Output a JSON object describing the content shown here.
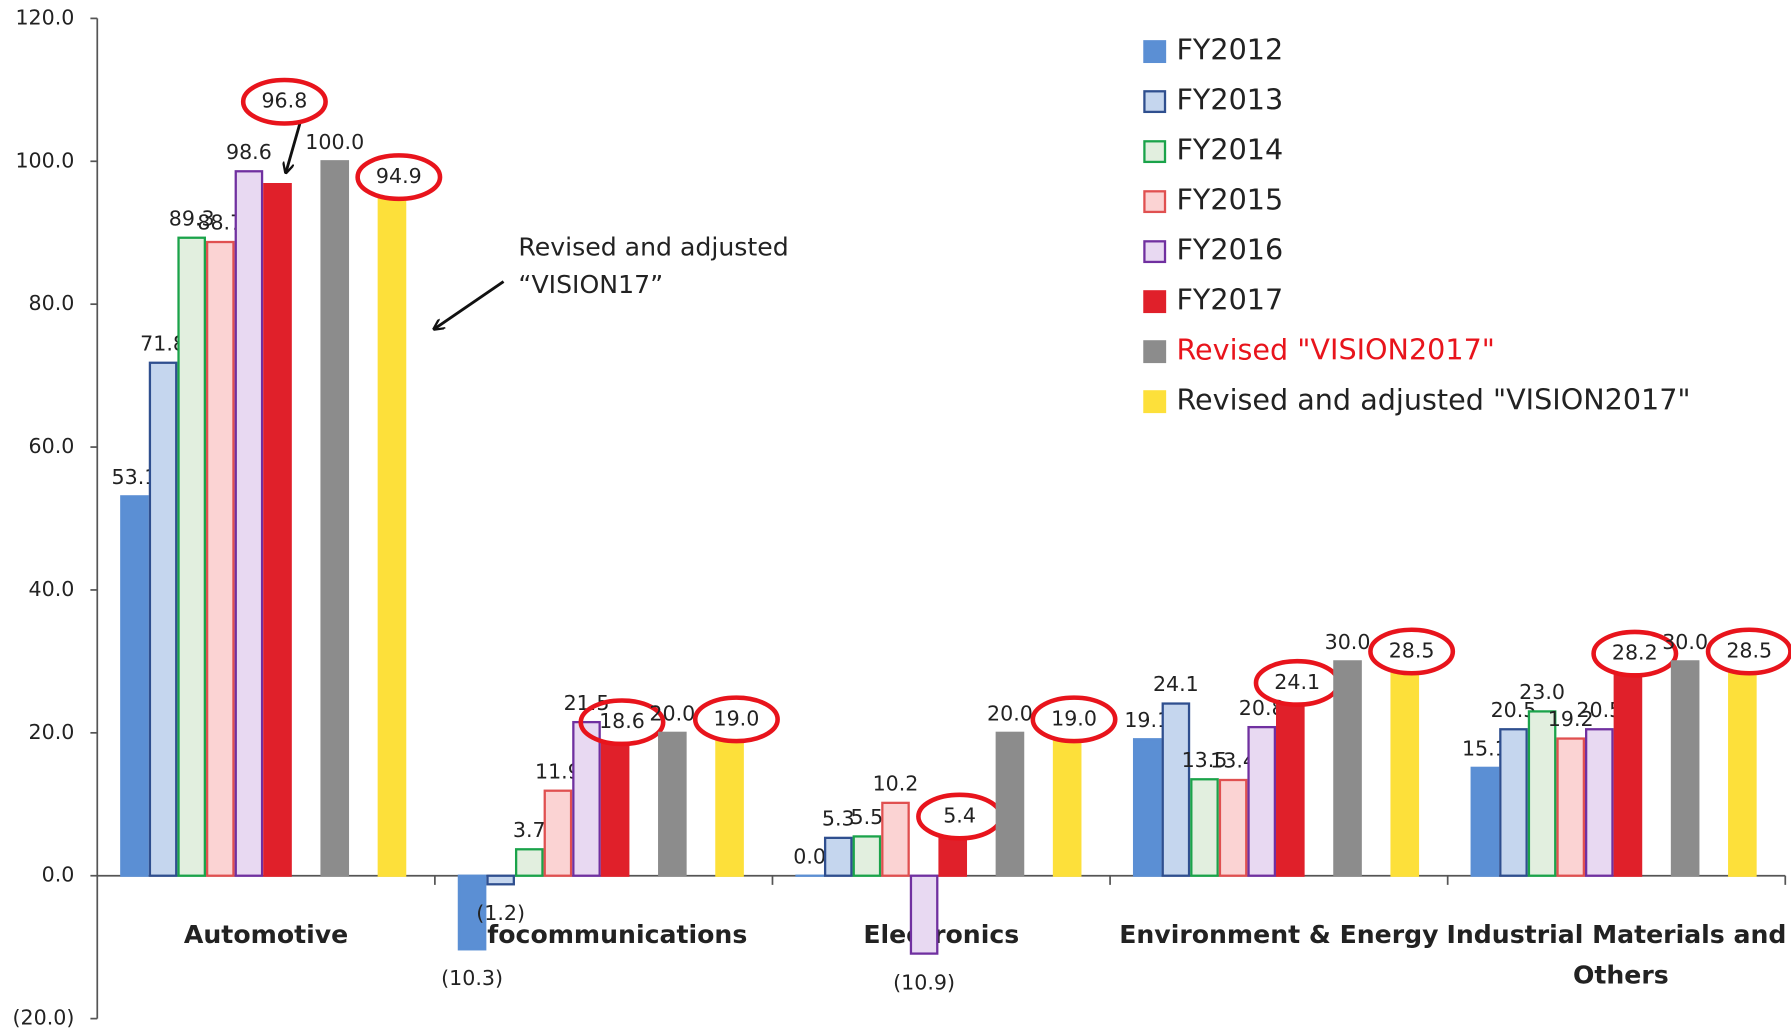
{
  "chart_data": {
    "type": "bar",
    "categories": [
      "Automotive",
      "Infocommunications",
      "Electronics",
      "Environment & Energy",
      "Industrial Materials and Others"
    ],
    "series": [
      {
        "name": "FY2012",
        "color": "#5b8fd4",
        "edge": "#5b8fd4",
        "values": [
          53.1,
          -10.3,
          0,
          19.1,
          15.1
        ],
        "value_labels": [
          "53.1",
          "(10.3)",
          "0.0",
          "19.1",
          "15.1"
        ]
      },
      {
        "name": "FY2013",
        "color": "#c5d6ee",
        "edge": "#2f4f8f",
        "values": [
          71.8,
          -1.2,
          5.3,
          24.1,
          20.5
        ],
        "value_labels": [
          "71.8",
          "(1.2)",
          "5.3",
          "24.1",
          "20.5"
        ]
      },
      {
        "name": "FY2014",
        "color": "#e2efdf",
        "edge": "#1aa34a",
        "values": [
          89.3,
          3.7,
          5.5,
          13.5,
          23.0
        ],
        "value_labels": [
          "89.3",
          "3.7",
          "5.5",
          "13.5",
          "23.0"
        ]
      },
      {
        "name": "FY2015",
        "color": "#fbd3d3",
        "edge": "#e05050",
        "values": [
          88.7,
          11.9,
          10.2,
          13.4,
          19.2
        ],
        "value_labels": [
          "88.7",
          "11.9",
          "10.2",
          "13.4",
          "19.2"
        ]
      },
      {
        "name": "FY2016",
        "color": "#e8d9f2",
        "edge": "#7030a0",
        "values": [
          98.6,
          21.5,
          -10.9,
          20.8,
          20.5
        ],
        "value_labels": [
          "98.6",
          "21.5",
          "(10.9)",
          "20.8",
          "20.5"
        ]
      },
      {
        "name": "FY2017",
        "color": "#e0202a",
        "edge": "#e0202a",
        "highlighted": true,
        "values": [
          96.8,
          18.6,
          5.4,
          24.1,
          28.2
        ],
        "value_labels": [
          "96.8",
          "18.6",
          "5.4",
          "24.1",
          "28.2"
        ]
      },
      {
        "name": "Revised \"VISION2017\"",
        "color": "#8c8c8c",
        "edge": "#8c8c8c",
        "legend_text_color": "#e8141c",
        "values": [
          100,
          20,
          20,
          30,
          30
        ],
        "value_labels": [
          "100.0",
          "20.0",
          "20.0",
          "30.0",
          "30.0"
        ]
      },
      {
        "name": "Revised and adjusted \"VISION2017\"",
        "color": "#fde03a",
        "edge": "#fde03a",
        "highlighted": true,
        "values": [
          94.9,
          19.0,
          19.0,
          28.5,
          28.5
        ],
        "value_labels": [
          "94.9",
          "19.0",
          "19.0",
          "28.5",
          "28.5"
        ]
      }
    ],
    "ylim": [
      -20,
      120
    ],
    "yticks": [
      {
        "value": -20,
        "label": "(20.0)"
      },
      {
        "value": 0,
        "label": "0.0"
      },
      {
        "value": 20,
        "label": "20.0"
      },
      {
        "value": 40,
        "label": "40.0"
      },
      {
        "value": 60,
        "label": "60.0"
      },
      {
        "value": 80,
        "label": "80.0"
      },
      {
        "value": 100,
        "label": "100.0"
      },
      {
        "value": 120,
        "label": "120.0"
      }
    ],
    "grid": false,
    "legend": "upper right",
    "annotations": [
      "Revised and adjusted",
      "“VISION17”"
    ]
  }
}
